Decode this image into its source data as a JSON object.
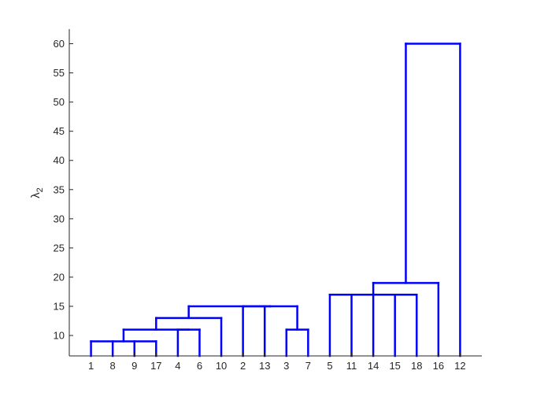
{
  "chart_data": {
    "type": "dendrogram",
    "title": "",
    "xlabel": "",
    "ylabel": "λ",
    "ylabel_subscript": "2",
    "ylim": [
      6.5,
      62.5
    ],
    "yticks": [
      10,
      15,
      20,
      25,
      30,
      35,
      40,
      45,
      50,
      55,
      60
    ],
    "leaf_order": [
      "1",
      "8",
      "9",
      "17",
      "4",
      "6",
      "10",
      "2",
      "13",
      "3",
      "7",
      "5",
      "11",
      "14",
      "15",
      "18",
      "16",
      "12"
    ],
    "merges": [
      {
        "children": [
          "1",
          "8",
          "9",
          "17"
        ],
        "height": 9
      },
      {
        "children": [
          "4",
          "6"
        ],
        "height": 11
      },
      {
        "children": [
          "3",
          "7"
        ],
        "height": 11
      },
      {
        "children": [
          "1-8-9-17",
          "4-6"
        ],
        "height": 11
      },
      {
        "children": [
          "1-8-9-17-4-6",
          "10"
        ],
        "height": 13
      },
      {
        "children": [
          "2",
          "13",
          "3-7"
        ],
        "height": 15
      },
      {
        "children": [
          "1-8-9-17-4-6-10",
          "2-13-3-7"
        ],
        "height": 15
      },
      {
        "children": [
          "5",
          "11",
          "14",
          "15",
          "18"
        ],
        "height": 17
      },
      {
        "children": [
          "1-…-7",
          "5-11-14-15-18"
        ],
        "height": 17
      },
      {
        "children": [
          "1-…-18",
          "16"
        ],
        "height": 19
      },
      {
        "children": [
          "1-…-16",
          "12"
        ],
        "height": 60
      }
    ],
    "line_color": "#0000ff",
    "grid": false,
    "legend": "none"
  }
}
